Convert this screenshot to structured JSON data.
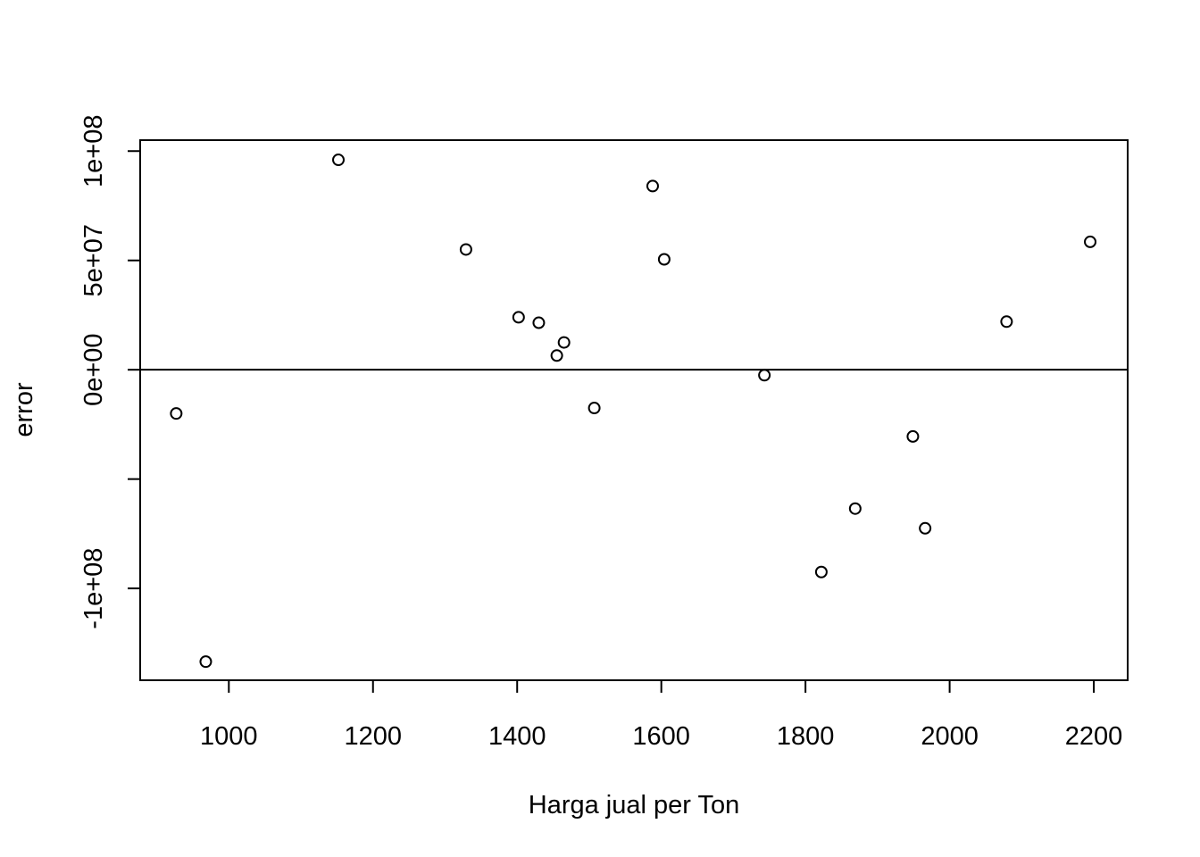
{
  "chart_data": {
    "type": "scatter",
    "title": "",
    "xlabel": "Harga jual per Ton",
    "ylabel": "error",
    "xlim": [
      877,
      2247
    ],
    "ylim": [
      -142000000,
      105000000
    ],
    "x_ticks": [
      {
        "value": 1000,
        "label": "1000"
      },
      {
        "value": 1200,
        "label": "1200"
      },
      {
        "value": 1400,
        "label": "1400"
      },
      {
        "value": 1600,
        "label": "1600"
      },
      {
        "value": 1800,
        "label": "1800"
      },
      {
        "value": 2000,
        "label": "2000"
      },
      {
        "value": 2200,
        "label": "2200"
      }
    ],
    "y_ticks": [
      {
        "value": -100000000,
        "label": "-1e+08"
      },
      {
        "value": -50000000,
        "label": ""
      },
      {
        "value": 0,
        "label": "0e+00"
      },
      {
        "value": 50000000,
        "label": "5e+07"
      },
      {
        "value": 100000000,
        "label": "1e+08"
      }
    ],
    "reference_line_y": 0,
    "grid": false,
    "points": [
      {
        "x": 927,
        "y": -20000000
      },
      {
        "x": 968,
        "y": -133500000
      },
      {
        "x": 1152,
        "y": 96000000
      },
      {
        "x": 1329,
        "y": 55000000
      },
      {
        "x": 1402,
        "y": 24000000
      },
      {
        "x": 1430,
        "y": 21500000
      },
      {
        "x": 1455,
        "y": 6500000
      },
      {
        "x": 1465,
        "y": 12500000
      },
      {
        "x": 1507,
        "y": -17500000
      },
      {
        "x": 1588,
        "y": 84000000
      },
      {
        "x": 1604,
        "y": 50500000
      },
      {
        "x": 1743,
        "y": -2500000
      },
      {
        "x": 1822,
        "y": -92500000
      },
      {
        "x": 1869,
        "y": -63500000
      },
      {
        "x": 1949,
        "y": -30500000
      },
      {
        "x": 1966,
        "y": -72500000
      },
      {
        "x": 2079,
        "y": 22000000
      },
      {
        "x": 2195,
        "y": 58500000
      }
    ]
  }
}
